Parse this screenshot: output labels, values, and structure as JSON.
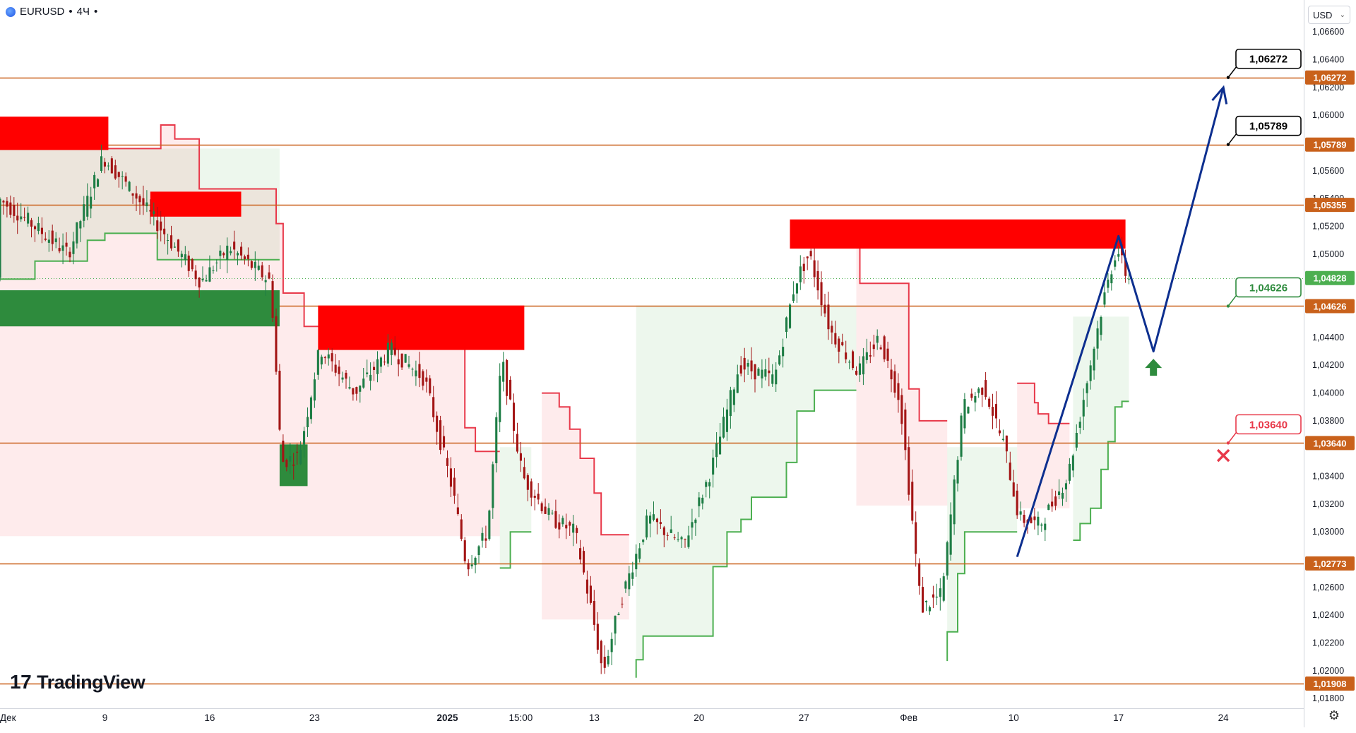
{
  "header": {
    "symbol": "EURUSD",
    "sep1": "•",
    "interval": "4Ч",
    "sep2": "•"
  },
  "currency_button": {
    "label": "USD"
  },
  "branding": {
    "logo_text": "TradingView"
  },
  "colors": {
    "level_line": "#c9611b",
    "supply_zone": "#ff0000",
    "demand_zone": "#2e8b3d",
    "trail_red": "#e8394a",
    "trail_green": "#4caf50",
    "forecast_line": "#0d2f8f",
    "candle_up": "#1e7d45",
    "candle_down": "#a31515",
    "price_tag_bg": "#c9611b",
    "target_green": "#2e8b3d",
    "stop_red": "#e8394a"
  },
  "chart_data": {
    "type": "candlestick",
    "symbol": "EURUSD",
    "interval": "4Ч",
    "y_axis": {
      "ylim": [
        1.0173,
        1.0683
      ],
      "ticks": [
        "1,06600",
        "1,06400",
        "1,06200",
        "1,06000",
        "1,05600",
        "1,05400",
        "1,05200",
        "1,05000",
        "1,04400",
        "1,04200",
        "1,04000",
        "1,03800",
        "1,03400",
        "1,03200",
        "1,03000",
        "1,02600",
        "1,02400",
        "1,02200",
        "1,02000",
        "1,01800"
      ]
    },
    "x_axis": {
      "labels": [
        {
          "text": "Дек",
          "bar": 0
        },
        {
          "text": "9",
          "bar": 30
        },
        {
          "text": "16",
          "bar": 60
        },
        {
          "text": "23",
          "bar": 90
        },
        {
          "text": "2025",
          "bar": 128
        },
        {
          "text": "15:00",
          "bar": 149
        },
        {
          "text": "13",
          "bar": 170
        },
        {
          "text": "20",
          "bar": 200
        },
        {
          "text": "27",
          "bar": 230
        },
        {
          "text": "Фев",
          "bar": 260
        },
        {
          "text": "10",
          "bar": 290
        },
        {
          "text": "17",
          "bar": 320
        },
        {
          "text": "24",
          "bar": 350
        }
      ],
      "bar_range": [
        0,
        373
      ]
    },
    "levels": [
      {
        "price": 1.06272,
        "label": "1,06272"
      },
      {
        "price": 1.05789,
        "label": "1,05789"
      },
      {
        "price": 1.05355,
        "label": "1,05355"
      },
      {
        "price": 1.04626,
        "label": "1,04626"
      },
      {
        "price": 1.0364,
        "label": "1,03640"
      },
      {
        "price": 1.02773,
        "label": "1,02773"
      },
      {
        "price": 1.01908,
        "label": "1,01908"
      }
    ],
    "current_price": {
      "price": 1.04828,
      "label": "1,04828"
    },
    "callouts": [
      {
        "label": "1,06272",
        "price": 1.06272,
        "kind": "target"
      },
      {
        "label": "1,05789",
        "price": 1.05789,
        "kind": "target"
      },
      {
        "label": "1,04626",
        "price": 1.04626,
        "kind": "entry"
      },
      {
        "label": "1,03640",
        "price": 1.0364,
        "kind": "stop"
      }
    ],
    "supply_zones": [
      {
        "bar_from": 0,
        "bar_to": 31,
        "price_top": 1.0599,
        "price_bottom": 1.0575
      },
      {
        "bar_from": 43,
        "bar_to": 69,
        "price_top": 1.0545,
        "price_bottom": 1.0527
      },
      {
        "bar_from": 91,
        "bar_to": 150,
        "price_top": 1.0463,
        "price_bottom": 1.0431
      },
      {
        "bar_from": 226,
        "bar_to": 322,
        "price_top": 1.0525,
        "price_bottom": 1.0504
      }
    ],
    "demand_zones": [
      {
        "bar_from": 0,
        "bar_to": 80,
        "price_top": 1.0474,
        "price_bottom": 1.0448
      },
      {
        "bar_from": 80,
        "bar_to": 88,
        "price_top": 1.0363,
        "price_bottom": 1.0333
      }
    ],
    "trail_segments": [
      {
        "color": "red",
        "points": [
          [
            0,
            1.0586
          ],
          [
            10,
            1.0586
          ],
          [
            10,
            1.0576
          ],
          [
            46,
            1.0576
          ],
          [
            46,
            1.0593
          ],
          [
            50,
            1.0593
          ],
          [
            50,
            1.0583
          ],
          [
            57,
            1.0583
          ],
          [
            57,
            1.0547
          ],
          [
            79,
            1.0547
          ],
          [
            79,
            1.0522
          ],
          [
            81,
            1.0522
          ],
          [
            81,
            1.0472
          ],
          [
            87,
            1.0472
          ],
          [
            87,
            1.0448
          ],
          [
            105,
            1.0448
          ],
          [
            105,
            1.0458
          ],
          [
            127,
            1.0458
          ],
          [
            127,
            1.0432
          ],
          [
            133,
            1.0432
          ],
          [
            133,
            1.0375
          ],
          [
            136,
            1.0375
          ],
          [
            136,
            1.0358
          ],
          [
            143,
            1.0358
          ]
        ]
      },
      {
        "color": "green",
        "points": [
          [
            0,
            1.0482
          ],
          [
            10,
            1.0482
          ],
          [
            10,
            1.0495
          ],
          [
            25,
            1.0495
          ],
          [
            25,
            1.051
          ],
          [
            30,
            1.051
          ],
          [
            30,
            1.0515
          ],
          [
            45,
            1.0515
          ],
          [
            45,
            1.0496
          ],
          [
            80,
            1.0496
          ]
        ]
      },
      {
        "color": "green",
        "points": [
          [
            143,
            1.0274
          ],
          [
            146,
            1.0274
          ],
          [
            146,
            1.03
          ],
          [
            152,
            1.03
          ]
        ]
      },
      {
        "color": "red",
        "points": [
          [
            155,
            1.04
          ],
          [
            160,
            1.04
          ],
          [
            160,
            1.039
          ],
          [
            163,
            1.039
          ],
          [
            163,
            1.0374
          ],
          [
            166,
            1.0374
          ],
          [
            166,
            1.0353
          ],
          [
            170,
            1.0353
          ],
          [
            170,
            1.0328
          ],
          [
            172,
            1.0328
          ],
          [
            172,
            1.0298
          ],
          [
            180,
            1.0298
          ]
        ]
      },
      {
        "color": "green",
        "points": [
          [
            182,
            1.0195
          ],
          [
            182,
            1.0208
          ],
          [
            184,
            1.0208
          ],
          [
            184,
            1.0225
          ],
          [
            204,
            1.0225
          ],
          [
            204,
            1.0275
          ],
          [
            208,
            1.0275
          ],
          [
            208,
            1.03
          ],
          [
            212,
            1.03
          ],
          [
            212,
            1.0309
          ],
          [
            215,
            1.0309
          ],
          [
            215,
            1.0325
          ],
          [
            225,
            1.0325
          ],
          [
            225,
            1.035
          ],
          [
            228,
            1.035
          ],
          [
            228,
            1.0387
          ],
          [
            233,
            1.0387
          ],
          [
            233,
            1.0402
          ],
          [
            245,
            1.0402
          ]
        ]
      },
      {
        "color": "red",
        "points": [
          [
            245,
            1.0506
          ],
          [
            246,
            1.0506
          ],
          [
            246,
            1.0479
          ],
          [
            260,
            1.0479
          ],
          [
            260,
            1.0403
          ],
          [
            263,
            1.0403
          ],
          [
            263,
            1.038
          ],
          [
            271,
            1.038
          ]
        ]
      },
      {
        "color": "green",
        "points": [
          [
            271,
            1.0207
          ],
          [
            271,
            1.0228
          ],
          [
            274,
            1.0228
          ],
          [
            274,
            1.027
          ],
          [
            276,
            1.027
          ],
          [
            276,
            1.03
          ],
          [
            291,
            1.03
          ]
        ]
      },
      {
        "color": "red",
        "points": [
          [
            291,
            1.0407
          ],
          [
            296,
            1.0407
          ],
          [
            296,
            1.0393
          ],
          [
            297,
            1.0393
          ],
          [
            297,
            1.0385
          ],
          [
            300,
            1.0385
          ],
          [
            300,
            1.0378
          ],
          [
            306,
            1.0378
          ]
        ]
      },
      {
        "color": "green",
        "points": [
          [
            307,
            1.0294
          ],
          [
            309,
            1.0294
          ],
          [
            309,
            1.0306
          ],
          [
            312,
            1.0306
          ],
          [
            312,
            1.0317
          ],
          [
            315,
            1.0317
          ],
          [
            315,
            1.0345
          ],
          [
            317,
            1.0345
          ],
          [
            317,
            1.0365
          ],
          [
            319,
            1.0365
          ],
          [
            319,
            1.039
          ],
          [
            321,
            1.039
          ],
          [
            321,
            1.0394
          ],
          [
            323,
            1.0394
          ]
        ]
      }
    ],
    "forecast_path": [
      [
        291,
        1.0282
      ],
      [
        320,
        1.0513
      ],
      [
        330,
        1.043
      ],
      [
        350,
        1.062
      ]
    ],
    "forecast_arrow": "up",
    "signal_marks": [
      {
        "kind": "buy-arrow",
        "bar": 330,
        "price": 1.0418
      },
      {
        "kind": "stop-cross",
        "bar": 350,
        "price": 1.0355
      }
    ]
  }
}
